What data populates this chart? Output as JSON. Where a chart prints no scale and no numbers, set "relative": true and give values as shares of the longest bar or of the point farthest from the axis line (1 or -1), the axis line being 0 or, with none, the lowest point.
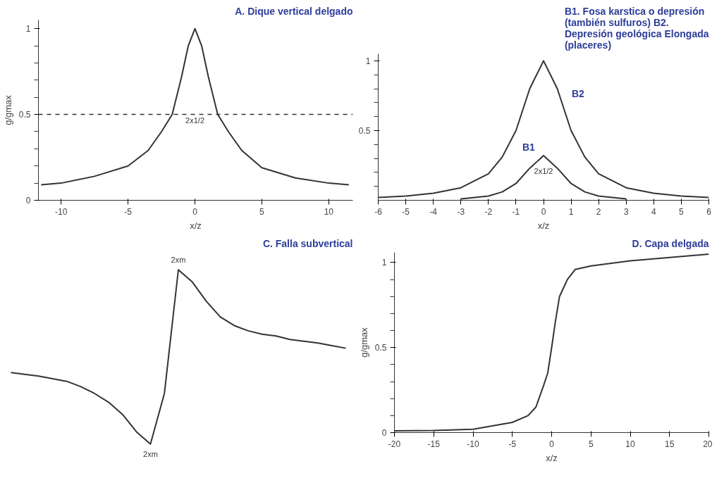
{
  "chart_data": [
    {
      "type": "line",
      "title": "A. Dique vertical delgado",
      "xlabel": "x/z",
      "ylabel": "g/gmax",
      "xlim": [
        -11.7,
        11.8
      ],
      "ylim": [
        0,
        1.05
      ],
      "xticks": [
        -10,
        -5,
        0,
        5,
        10
      ],
      "yticks": [
        0,
        {
          "value": 0.1,
          "label": null
        },
        {
          "value": 0.2,
          "label": null
        },
        {
          "value": 0.3,
          "label": null
        },
        {
          "value": 0.4,
          "label": null
        },
        0.5,
        {
          "value": 0.6,
          "label": null
        },
        {
          "value": 0.7,
          "label": null
        },
        {
          "value": 0.8,
          "label": null
        },
        {
          "value": 0.9,
          "label": null
        },
        1
      ],
      "ref_lines": [
        {
          "axis": "y",
          "value": 0.5,
          "line_style": "dashed",
          "color": "#333333"
        }
      ],
      "annotations": [
        {
          "text": "2x1/2",
          "x": 0,
          "y": 0.5
        }
      ],
      "series": [
        {
          "color": "#333333",
          "x": [
            -11.5,
            -10,
            -7.5,
            -5,
            -3.5,
            -2.5,
            -1.7,
            -1,
            -0.5,
            0,
            0.5,
            1,
            1.7,
            2.5,
            3.5,
            5,
            7.5,
            10,
            11.5
          ],
          "values": [
            0.09,
            0.1,
            0.14,
            0.2,
            0.29,
            0.4,
            0.5,
            0.72,
            0.9,
            1,
            0.9,
            0.72,
            0.5,
            0.4,
            0.29,
            0.19,
            0.13,
            0.1,
            0.09
          ]
        }
      ]
    },
    {
      "type": "line",
      "title": "B1. Fosa karstica o depresión (también sulfuros) B2. Depresión geológica Elongada (placeres)",
      "xlabel": "x/z",
      "xlim": [
        -6,
        6
      ],
      "ylim": [
        0,
        1.05
      ],
      "xticks": [
        -6,
        -5,
        -4,
        -3,
        -2,
        -1,
        0,
        1,
        2,
        3,
        4,
        5,
        6
      ],
      "yticks": [
        {
          "value": 0.1,
          "label": null
        },
        {
          "value": 0.2,
          "label": null
        },
        {
          "value": 0.3,
          "label": null
        },
        {
          "value": 0.4,
          "label": null
        },
        0.5,
        {
          "value": 0.6,
          "label": null
        },
        {
          "value": 0.7,
          "label": null
        },
        {
          "value": 0.8,
          "label": null
        },
        {
          "value": 0.9,
          "label": null
        },
        1
      ],
      "annotations": [
        "2x1/2"
      ],
      "series": [
        {
          "name": "B1",
          "color": "#333333",
          "x": [
            -3,
            -2,
            -1.5,
            -1,
            -0.5,
            0,
            0.5,
            1,
            1.5,
            2,
            3
          ],
          "values": [
            0.01,
            0.03,
            0.06,
            0.12,
            0.23,
            0.32,
            0.23,
            0.12,
            0.06,
            0.03,
            0.01
          ]
        },
        {
          "name": "B2",
          "color": "#333333",
          "x": [
            -6,
            -5,
            -4,
            -3,
            -2,
            -1.5,
            -1,
            -0.5,
            0,
            0.5,
            1,
            1.5,
            2,
            3,
            4,
            5,
            6
          ],
          "values": [
            0.02,
            0.03,
            0.05,
            0.09,
            0.19,
            0.31,
            0.5,
            0.8,
            1,
            0.8,
            0.5,
            0.31,
            0.19,
            0.09,
            0.05,
            0.03,
            0.02
          ]
        }
      ]
    },
    {
      "type": "line",
      "title": "C. Falla subvertical",
      "relative": true,
      "categories": [
        null,
        null,
        null,
        null,
        null,
        null,
        null,
        null,
        null,
        null,
        null,
        null,
        null,
        null,
        null,
        null,
        null,
        null,
        null,
        null,
        null,
        null,
        null,
        null,
        null
      ],
      "annotations": [
        "2xm",
        "2xm"
      ],
      "series": [
        {
          "color": "#333333",
          "values": [
            0.41,
            0.4,
            0.39,
            0.375,
            0.36,
            0.33,
            0.29,
            0.24,
            0.17,
            0.07,
            0,
            0.29,
            1,
            0.93,
            0.82,
            0.73,
            0.68,
            0.65,
            0.63,
            0.62,
            0.6,
            0.59,
            0.58,
            0.565,
            0.55
          ]
        }
      ]
    },
    {
      "type": "line",
      "title": "D. Capa delgada",
      "xlabel": "x/z",
      "ylabel": "g/gmax",
      "xlim": [
        -20,
        20
      ],
      "ylim": [
        0,
        1.06
      ],
      "xticks": [
        -20,
        -15,
        -10,
        -5,
        0,
        5,
        10,
        15,
        20
      ],
      "yticks": [
        0,
        {
          "value": 0.1,
          "label": null
        },
        {
          "value": 0.2,
          "label": null
        },
        {
          "value": 0.3,
          "label": null
        },
        {
          "value": 0.4,
          "label": null
        },
        0.5,
        {
          "value": 0.6,
          "label": null
        },
        {
          "value": 0.7,
          "label": null
        },
        {
          "value": 0.8,
          "label": null
        },
        {
          "value": 0.9,
          "label": null
        },
        1
      ],
      "series": [
        {
          "color": "#333333",
          "x": [
            -20,
            -15,
            -10,
            -5,
            -3,
            -2,
            -1,
            -0.5,
            0,
            0.5,
            1,
            2,
            3,
            5,
            10,
            15,
            20
          ],
          "values": [
            0.01,
            0.012,
            0.02,
            0.06,
            0.1,
            0.15,
            0.28,
            0.35,
            0.5,
            0.66,
            0.8,
            0.9,
            0.96,
            0.98,
            1.01,
            1.03,
            1.05
          ]
        }
      ]
    }
  ]
}
